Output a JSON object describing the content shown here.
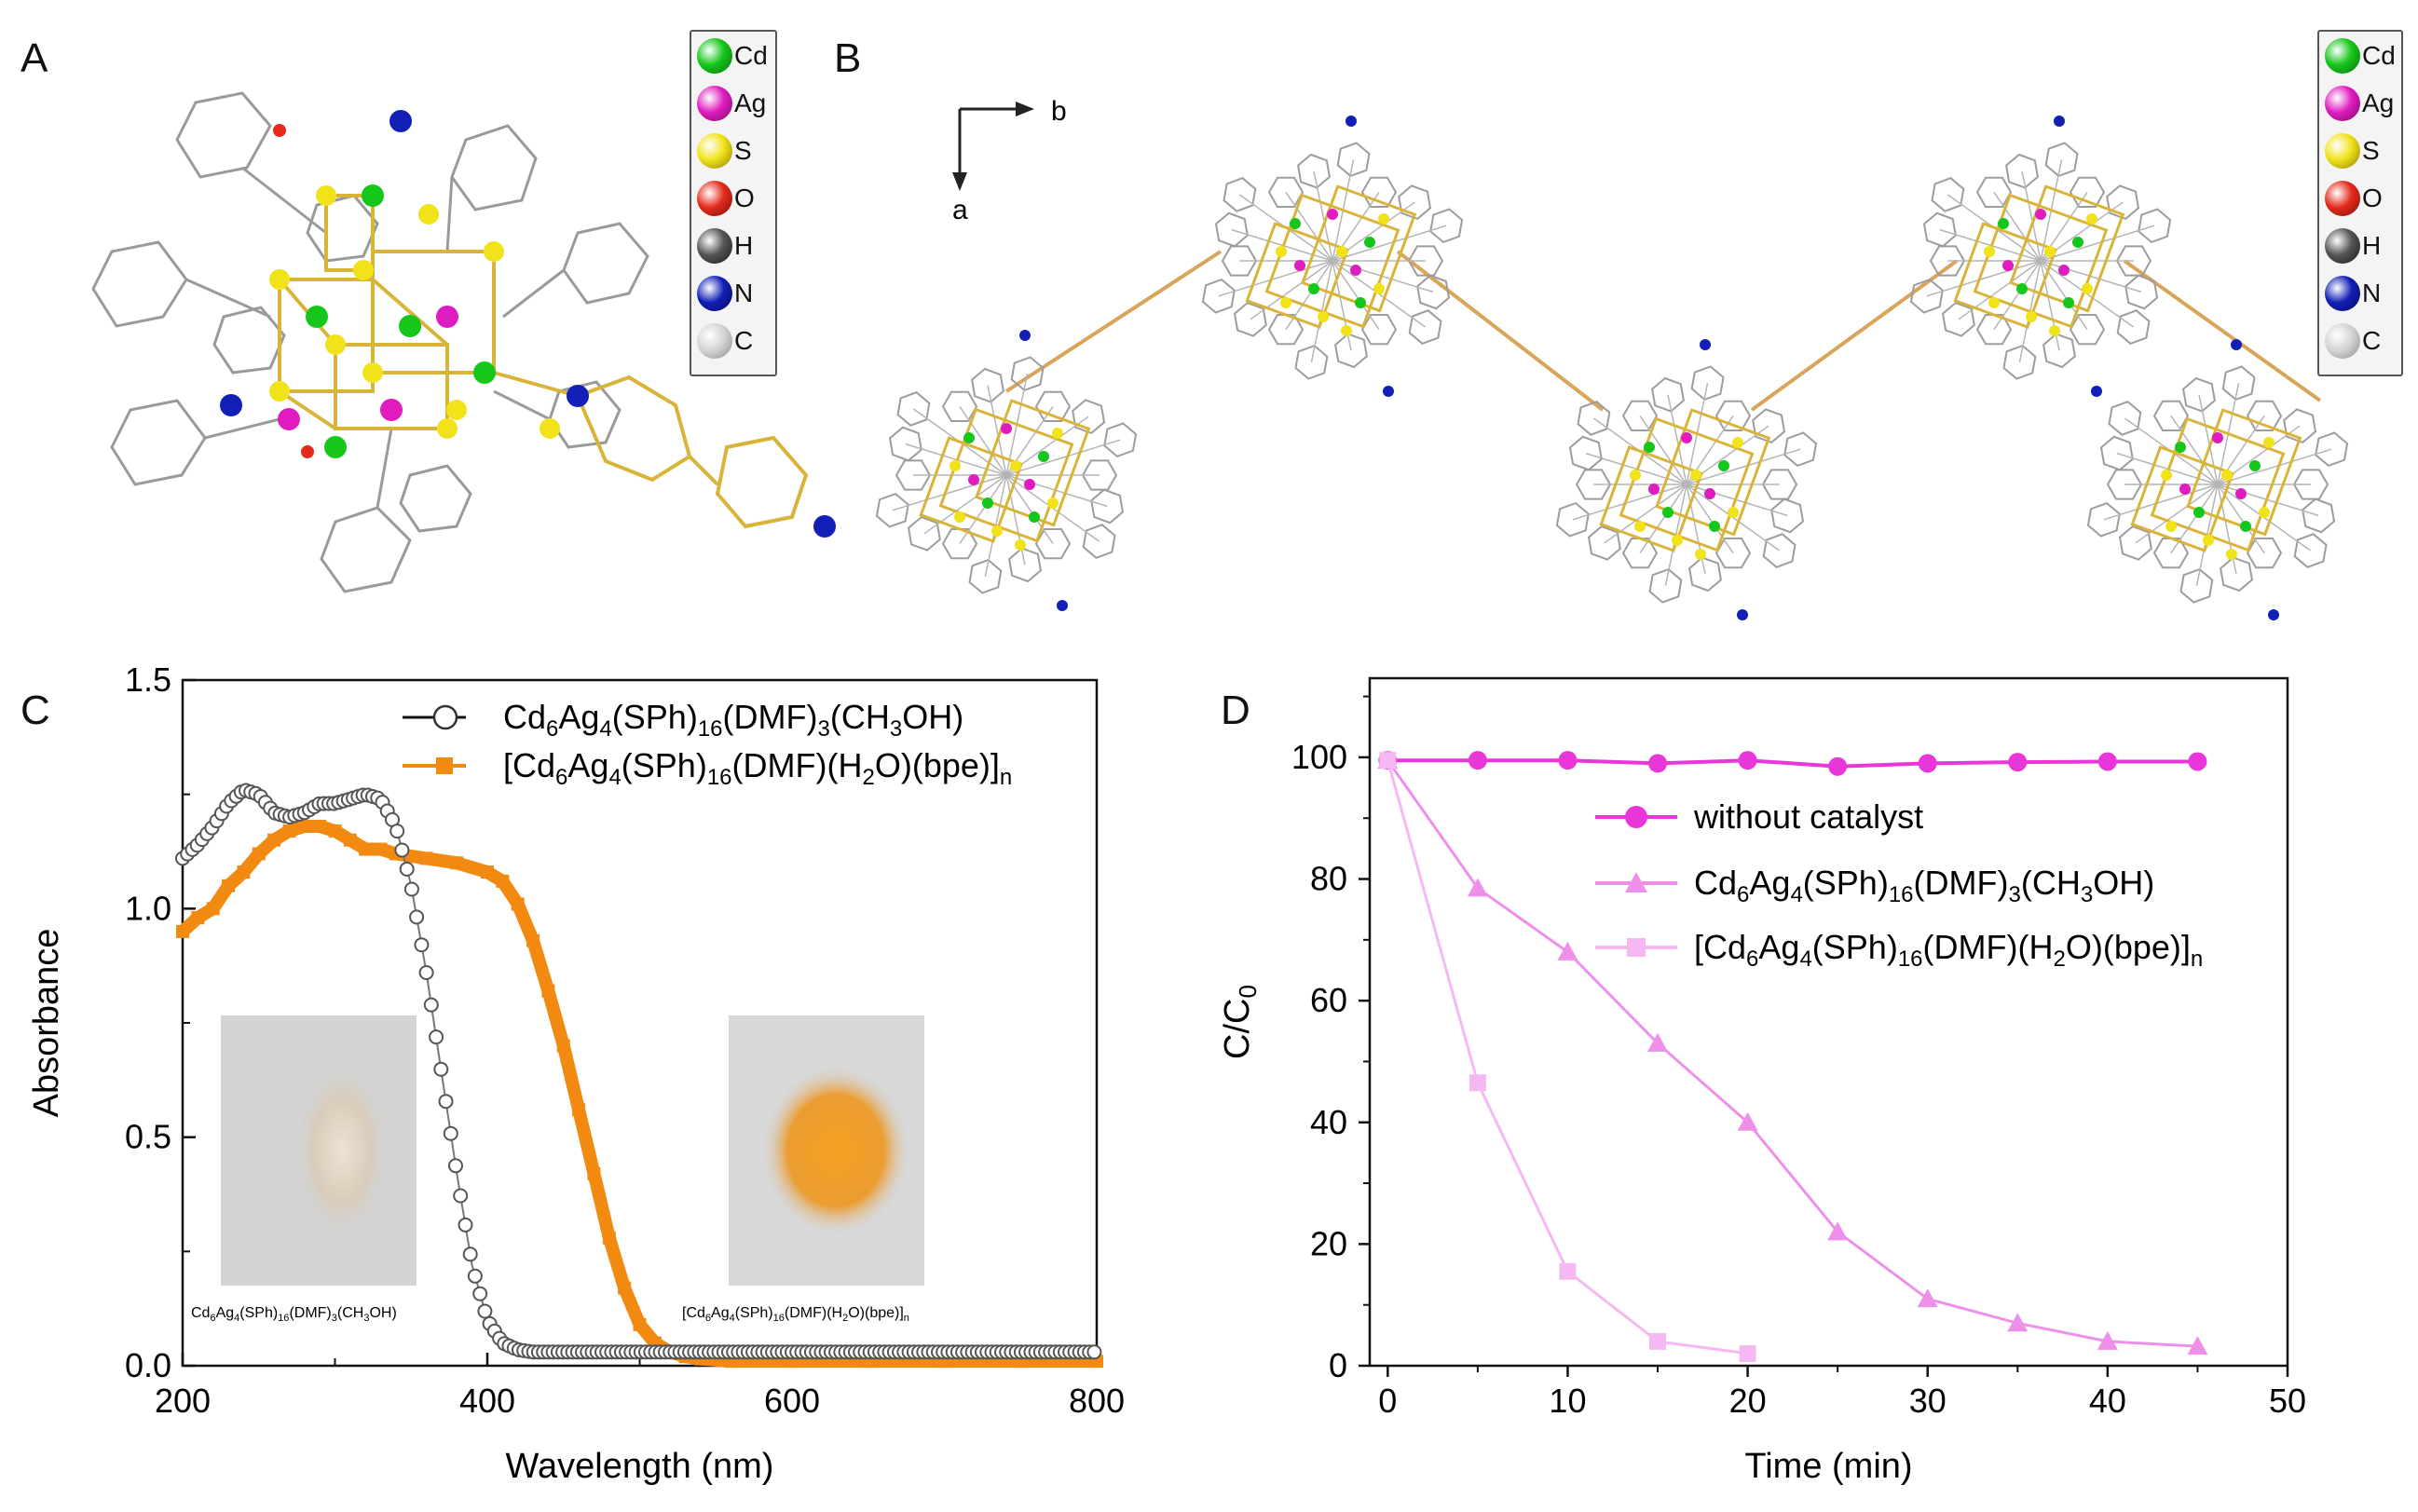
{
  "panels": {
    "a_label": "A",
    "b_label": "B",
    "c_label": "C",
    "d_label": "D"
  },
  "element_legend": [
    {
      "symbol": "Cd",
      "color": "#16c61a"
    },
    {
      "symbol": "Ag",
      "color": "#e01cc0"
    },
    {
      "symbol": "S",
      "color": "#f2e21a"
    },
    {
      "symbol": "O",
      "color": "#e52a1c"
    },
    {
      "symbol": "H",
      "color": "#555555"
    },
    {
      "symbol": "N",
      "color": "#1320b8"
    },
    {
      "symbol": "C",
      "color": "#d0d0d0"
    }
  ],
  "axes_b": {
    "b": "b",
    "a": "a"
  },
  "colors": {
    "orange": "#f28a12",
    "gray_circle": "#555555",
    "magenta": "#e836d8",
    "pink": "#ee90ea",
    "light_pink": "#f6b8f2"
  },
  "chart_data": [
    {
      "type": "line",
      "panel": "C",
      "xlabel": "Wavelength (nm)",
      "ylabel": "Absorbance",
      "xlim": [
        200,
        800
      ],
      "ylim": [
        0.0,
        1.5
      ],
      "xticks": [
        "200",
        "400",
        "600",
        "800"
      ],
      "yticks": [
        "0.0",
        "0.5",
        "1.0",
        "1.5"
      ],
      "legend": [
        {
          "parts": [
            [
              "n",
              "Cd"
            ],
            [
              "s",
              "6"
            ],
            [
              "n",
              "Ag"
            ],
            [
              "s",
              "4"
            ],
            [
              "n",
              "(SPh)"
            ],
            [
              "s",
              "16"
            ],
            [
              "n",
              "(DMF)"
            ],
            [
              "s",
              "3"
            ],
            [
              "n",
              "(CH"
            ],
            [
              "s",
              "3"
            ],
            [
              "n",
              "OH)"
            ]
          ]
        },
        {
          "parts": [
            [
              "n",
              "[Cd"
            ],
            [
              "s",
              "6"
            ],
            [
              "n",
              "Ag"
            ],
            [
              "s",
              "4"
            ],
            [
              "n",
              "(SPh)"
            ],
            [
              "s",
              "16"
            ],
            [
              "n",
              "(DMF)(H"
            ],
            [
              "s",
              "2"
            ],
            [
              "n",
              "O)(bpe)]"
            ],
            [
              "s",
              "n"
            ]
          ]
        }
      ],
      "series": [
        {
          "name": "Cd6Ag4(SPh)16(DMF)3(CH3OH)",
          "marker": "open-circle",
          "x": [
            200,
            210,
            220,
            230,
            240,
            250,
            260,
            270,
            280,
            290,
            300,
            310,
            320,
            330,
            340,
            350,
            360,
            370,
            380,
            390,
            400,
            410,
            420,
            430,
            440,
            450,
            460,
            480,
            500,
            550,
            600,
            650,
            700,
            750,
            800
          ],
          "y": [
            1.11,
            1.14,
            1.18,
            1.23,
            1.26,
            1.25,
            1.21,
            1.2,
            1.21,
            1.23,
            1.23,
            1.24,
            1.25,
            1.24,
            1.18,
            1.05,
            0.86,
            0.64,
            0.42,
            0.22,
            0.1,
            0.05,
            0.035,
            0.03,
            0.03,
            0.03,
            0.03,
            0.03,
            0.03,
            0.03,
            0.03,
            0.03,
            0.03,
            0.03,
            0.03
          ]
        },
        {
          "name": "[Cd6Ag4(SPh)16(DMF)(H2O)(bpe)]n",
          "marker": "filled-square",
          "x": [
            200,
            210,
            220,
            230,
            240,
            250,
            260,
            270,
            280,
            290,
            300,
            310,
            320,
            330,
            340,
            360,
            380,
            400,
            410,
            420,
            430,
            440,
            450,
            460,
            470,
            480,
            490,
            500,
            510,
            520,
            530,
            540,
            560,
            600,
            650,
            700,
            750,
            800
          ],
          "y": [
            0.95,
            0.98,
            1.0,
            1.05,
            1.08,
            1.12,
            1.15,
            1.17,
            1.18,
            1.18,
            1.17,
            1.15,
            1.13,
            1.13,
            1.12,
            1.11,
            1.1,
            1.08,
            1.06,
            1.01,
            0.93,
            0.82,
            0.7,
            0.56,
            0.42,
            0.28,
            0.17,
            0.09,
            0.05,
            0.03,
            0.02,
            0.015,
            0.01,
            0.01,
            0.01,
            0.01,
            0.01,
            0.01
          ]
        }
      ],
      "insets": [
        {
          "caption_parts": [
            [
              "n",
              "Cd"
            ],
            [
              "s",
              "6"
            ],
            [
              "n",
              "Ag"
            ],
            [
              "s",
              "4"
            ],
            [
              "n",
              "(SPh)"
            ],
            [
              "s",
              "16"
            ],
            [
              "n",
              "(DMF)"
            ],
            [
              "s",
              "3"
            ],
            [
              "n",
              "(CH"
            ],
            [
              "s",
              "3"
            ],
            [
              "n",
              "OH)"
            ]
          ],
          "sample_color": "#e2d6c6",
          "background": "#d2d2d2"
        },
        {
          "caption_parts": [
            [
              "n",
              "[Cd"
            ],
            [
              "s",
              "6"
            ],
            [
              "n",
              "Ag"
            ],
            [
              "s",
              "4"
            ],
            [
              "n",
              "(SPh)"
            ],
            [
              "s",
              "16"
            ],
            [
              "n",
              "(DMF)(H"
            ],
            [
              "s",
              "2"
            ],
            [
              "n",
              "O)(bpe)]"
            ],
            [
              "s",
              "n"
            ]
          ],
          "sample_color": "#f2a028",
          "background": "#d6d6d6"
        }
      ]
    },
    {
      "type": "line",
      "panel": "D",
      "xlabel": "Time (min)",
      "ylabel_parts": [
        [
          "n",
          "C/C"
        ],
        [
          "s",
          "0"
        ]
      ],
      "xlim": [
        -1,
        50
      ],
      "ylim": [
        0,
        113
      ],
      "xticks": [
        "0",
        "10",
        "20",
        "30",
        "40",
        "50"
      ],
      "yticks": [
        "0",
        "20",
        "40",
        "60",
        "80",
        "100"
      ],
      "legend": [
        {
          "parts": [
            [
              "n",
              "without catalyst"
            ]
          ]
        },
        {
          "parts": [
            [
              "n",
              "Cd"
            ],
            [
              "s",
              "6"
            ],
            [
              "n",
              "Ag"
            ],
            [
              "s",
              "4"
            ],
            [
              "n",
              "(SPh)"
            ],
            [
              "s",
              "16"
            ],
            [
              "n",
              "(DMF)"
            ],
            [
              "s",
              "3"
            ],
            [
              "n",
              "(CH"
            ],
            [
              "s",
              "3"
            ],
            [
              "n",
              "OH)"
            ]
          ]
        },
        {
          "parts": [
            [
              "n",
              "[Cd"
            ],
            [
              "s",
              "6"
            ],
            [
              "n",
              "Ag"
            ],
            [
              "s",
              "4"
            ],
            [
              "n",
              "(SPh)"
            ],
            [
              "s",
              "16"
            ],
            [
              "n",
              "(DMF)(H"
            ],
            [
              "s",
              "2"
            ],
            [
              "n",
              "O)(bpe)]"
            ],
            [
              "s",
              "n"
            ]
          ]
        }
      ],
      "series": [
        {
          "name": "without catalyst",
          "marker": "circle",
          "x": [
            0,
            5,
            10,
            15,
            20,
            25,
            30,
            35,
            40,
            45
          ],
          "y": [
            99.5,
            99.5,
            99.5,
            99,
            99.5,
            98.5,
            99,
            99.2,
            99.3,
            99.3
          ]
        },
        {
          "name": "Cd6Ag4(SPh)16(DMF)3(CH3OH)",
          "marker": "triangle",
          "x": [
            0,
            5,
            10,
            15,
            20,
            25,
            30,
            35,
            40,
            45
          ],
          "y": [
            99.5,
            78.5,
            68,
            53,
            40,
            22,
            11,
            7,
            4,
            3.2
          ]
        },
        {
          "name": "[Cd6Ag4(SPh)16(DMF)(H2O)(bpe)]n",
          "marker": "square",
          "x": [
            0,
            5,
            10,
            15,
            20
          ],
          "y": [
            99.5,
            46.5,
            15.5,
            4,
            2
          ]
        }
      ]
    }
  ]
}
